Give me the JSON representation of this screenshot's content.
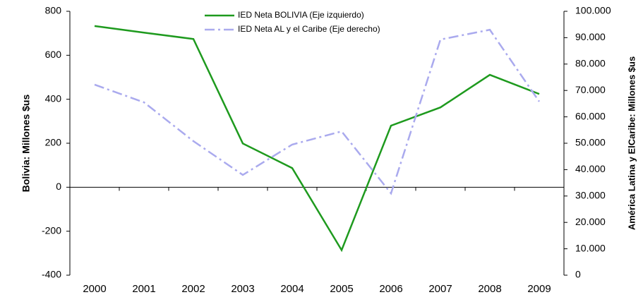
{
  "chart_data": {
    "type": "line",
    "y_label": "Bolivia: Millones $us",
    "y2_label": "América Latina y ElCaribe: Millones $us",
    "categories": [
      "2000",
      "2001",
      "2002",
      "2003",
      "2004",
      "2005",
      "2006",
      "2007",
      "2008",
      "2009"
    ],
    "series": [
      {
        "name": "IED Neta BOLIVIA (Eje izquierdo)",
        "color": "#1e9a1e",
        "values": [
          733,
          703,
          674,
          199,
          87,
          -286,
          280,
          363,
          511,
          424
        ]
      },
      {
        "name": "IED Neta AL y el Caribe (Eje derecho)",
        "color": "#aaaaee",
        "axis": "y2",
        "values": [
          72200,
          65500,
          50800,
          38000,
          49500,
          54500,
          31000,
          89300,
          93000,
          65800
        ]
      }
    ],
    "ylim": [
      -400,
      800
    ],
    "yticks": [
      -400,
      -200,
      0,
      200,
      400,
      600,
      800
    ],
    "y2lim": [
      0,
      100000
    ],
    "y2ticks": [
      0,
      {
        "value": 10000,
        "label": "10.000"
      },
      {
        "value": 20000,
        "label": "20.000"
      },
      {
        "value": 30000,
        "label": "30.000"
      },
      {
        "value": 40000,
        "label": "40.000"
      },
      {
        "value": 50000,
        "label": "50.000"
      },
      {
        "value": 60000,
        "label": "60.000"
      },
      {
        "value": 70000,
        "label": "70.000"
      },
      {
        "value": 80000,
        "label": "80.000"
      },
      {
        "value": 90000,
        "label": "90.000"
      },
      {
        "value": 100000,
        "label": "100.000"
      }
    ],
    "legend": "top"
  }
}
